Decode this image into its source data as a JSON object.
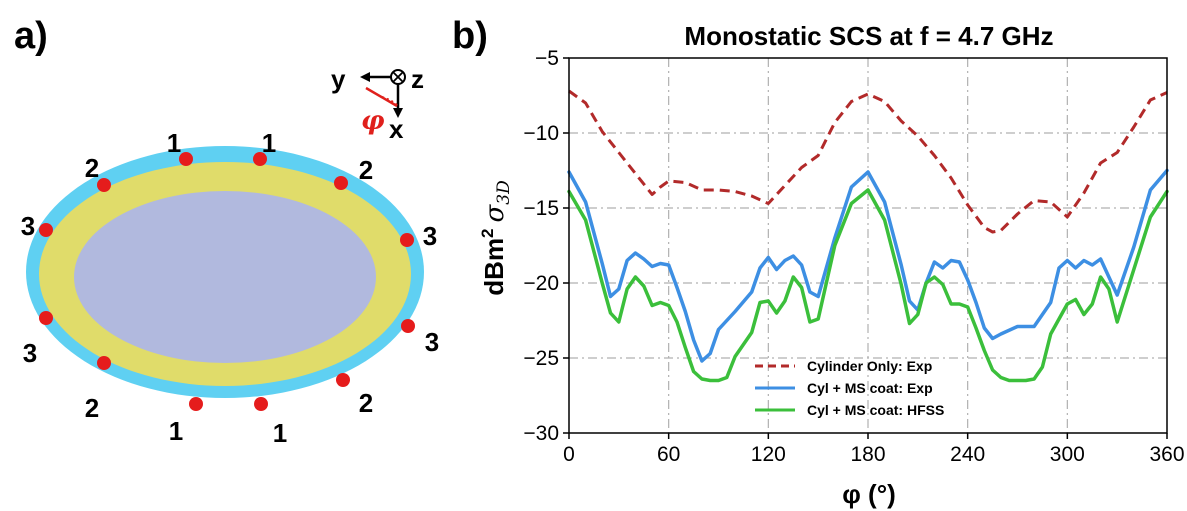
{
  "panel_a": {
    "label": "a)",
    "axis_glyphs": {
      "y": "y",
      "z": "z",
      "x": "x",
      "phi": "φ"
    },
    "ports": [
      {
        "label": "1"
      },
      {
        "label": "1"
      },
      {
        "label": "2"
      },
      {
        "label": "2"
      },
      {
        "label": "3"
      },
      {
        "label": "3"
      },
      {
        "label": "3"
      },
      {
        "label": "3"
      },
      {
        "label": "2"
      },
      {
        "label": "2"
      },
      {
        "label": "1"
      },
      {
        "label": "1"
      }
    ],
    "colors": {
      "outer": "#5fd0f2",
      "middle": "#e0dc6a",
      "inner": "#b1b9de",
      "port": "#e51c1c",
      "phi": "#e0201c"
    }
  },
  "panel_b": {
    "label": "b)"
  },
  "chart_data": {
    "type": "line",
    "title": "Monostatic SCS at f = 4.7 GHz",
    "xlabel": "φ (°)",
    "ylabel": "dBm² σ3D",
    "ylabel_parts": {
      "unit": "dBm",
      "sup": "2",
      "sym": "σ",
      "sub": "3D"
    },
    "xlim": [
      0,
      360
    ],
    "ylim": [
      -30,
      -5
    ],
    "xticks": [
      0,
      60,
      120,
      180,
      240,
      300,
      360
    ],
    "xtick_labels": [
      "0",
      "60",
      "120",
      "180",
      "240",
      "300",
      "360"
    ],
    "yticks": [
      -5,
      -10,
      -15,
      -20,
      -25,
      -30
    ],
    "ytick_labels": [
      "−5",
      "−10",
      "−15",
      "−20",
      "−25",
      "−30"
    ],
    "grid": true,
    "legend_position": "lower-center",
    "series": [
      {
        "name": "Cylinder Only: Exp",
        "color": "#b22a2a",
        "style": "dashed",
        "x": [
          0,
          10,
          20,
          30,
          40,
          50,
          55,
          60,
          70,
          80,
          90,
          100,
          110,
          120,
          130,
          140,
          150,
          160,
          170,
          180,
          190,
          200,
          210,
          220,
          230,
          240,
          250,
          255,
          260,
          270,
          280,
          290,
          300,
          310,
          320,
          330,
          340,
          350,
          360
        ],
        "y": [
          -7.2,
          -8.0,
          -9.9,
          -11.3,
          -12.7,
          -14.1,
          -13.6,
          -13.2,
          -13.3,
          -13.8,
          -13.8,
          -13.9,
          -14.2,
          -14.7,
          -13.5,
          -12.3,
          -11.5,
          -9.3,
          -7.9,
          -7.4,
          -7.9,
          -9.2,
          -10.2,
          -11.5,
          -13.0,
          -14.8,
          -16.3,
          -16.6,
          -16.5,
          -15.4,
          -14.5,
          -14.6,
          -15.6,
          -14.0,
          -12.0,
          -11.3,
          -9.6,
          -7.8,
          -7.3
        ]
      },
      {
        "name": "Cyl + MS coat: Exp",
        "color": "#3d8fe3",
        "style": "solid",
        "x": [
          0,
          10,
          20,
          25,
          30,
          35,
          40,
          45,
          50,
          55,
          60,
          65,
          70,
          75,
          80,
          85,
          90,
          100,
          110,
          115,
          120,
          125,
          130,
          135,
          140,
          145,
          150,
          160,
          170,
          180,
          190,
          200,
          205,
          210,
          215,
          220,
          225,
          230,
          235,
          240,
          245,
          250,
          255,
          260,
          270,
          280,
          290,
          295,
          300,
          305,
          310,
          315,
          320,
          325,
          330,
          340,
          350,
          360
        ],
        "y": [
          -12.6,
          -14.6,
          -18.7,
          -20.9,
          -20.4,
          -18.5,
          -18.0,
          -18.4,
          -18.9,
          -18.7,
          -18.8,
          -20.3,
          -21.9,
          -23.8,
          -25.2,
          -24.7,
          -23.1,
          -21.9,
          -20.6,
          -19.0,
          -18.3,
          -19.1,
          -18.5,
          -18.2,
          -18.8,
          -20.6,
          -20.9,
          -17.0,
          -13.6,
          -12.6,
          -14.6,
          -18.8,
          -21.2,
          -21.8,
          -20.0,
          -18.6,
          -19.0,
          -18.5,
          -18.6,
          -19.8,
          -21.3,
          -23.0,
          -23.7,
          -23.4,
          -22.9,
          -22.9,
          -21.3,
          -19.0,
          -18.5,
          -19.0,
          -18.5,
          -18.8,
          -18.4,
          -19.6,
          -20.8,
          -17.6,
          -13.8,
          -12.5
        ]
      },
      {
        "name": "Cyl + MS coat: HFSS",
        "color": "#3bbf3b",
        "style": "solid",
        "x": [
          0,
          10,
          20,
          25,
          30,
          35,
          40,
          45,
          50,
          55,
          60,
          65,
          70,
          75,
          80,
          85,
          90,
          95,
          100,
          110,
          115,
          120,
          125,
          130,
          135,
          140,
          145,
          150,
          160,
          170,
          180,
          190,
          200,
          205,
          210,
          215,
          220,
          225,
          230,
          235,
          240,
          245,
          250,
          255,
          260,
          265,
          270,
          275,
          280,
          285,
          290,
          300,
          305,
          310,
          315,
          320,
          325,
          330,
          340,
          350,
          360
        ],
        "y": [
          -13.9,
          -15.8,
          -20.0,
          -22.0,
          -22.6,
          -20.4,
          -19.6,
          -20.2,
          -21.5,
          -21.3,
          -21.5,
          -22.6,
          -24.3,
          -25.9,
          -26.4,
          -26.5,
          -26.5,
          -26.3,
          -24.9,
          -23.3,
          -21.3,
          -21.2,
          -22.0,
          -21.2,
          -19.6,
          -20.3,
          -22.6,
          -22.4,
          -17.5,
          -14.7,
          -13.8,
          -15.8,
          -20.1,
          -22.7,
          -22.1,
          -20.0,
          -19.6,
          -20.1,
          -21.4,
          -21.4,
          -21.6,
          -23.0,
          -24.5,
          -25.8,
          -26.3,
          -26.5,
          -26.5,
          -26.5,
          -26.4,
          -25.6,
          -23.4,
          -21.4,
          -21.1,
          -22.1,
          -21.4,
          -19.6,
          -20.4,
          -22.6,
          -19.1,
          -15.6,
          -13.9
        ]
      }
    ]
  }
}
